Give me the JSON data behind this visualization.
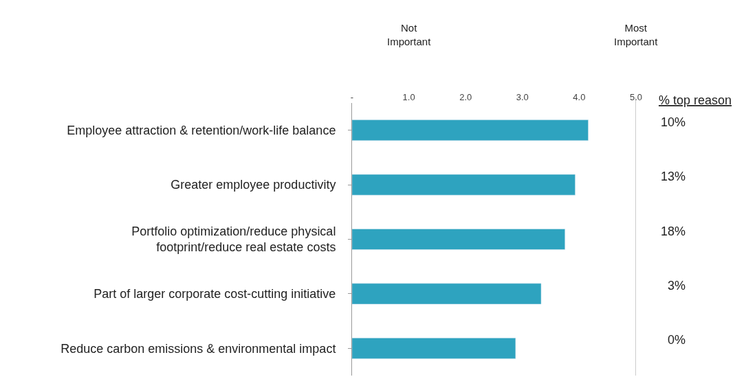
{
  "chart_data": {
    "type": "bar",
    "orientation": "horizontal",
    "categories": [
      "Employee attraction & retention/work-life balance",
      "Greater employee productivity",
      "Portfolio optimization/reduce physical\nfootprint/reduce real estate costs",
      "Part of larger corporate cost-cutting initiative",
      "Reduce carbon emissions & environmental impact"
    ],
    "values": [
      4.16,
      3.93,
      3.75,
      3.33,
      2.88
    ],
    "color": "#2ea3bf",
    "xlim": [
      0,
      5
    ],
    "xticks": [
      {
        "value": 0,
        "label": "-"
      },
      {
        "value": 1,
        "label": "1.0"
      },
      {
        "value": 2,
        "label": "2.0"
      },
      {
        "value": 3,
        "label": "3.0"
      },
      {
        "value": 4,
        "label": "4.0"
      },
      {
        "value": 5,
        "label": "5.0"
      }
    ],
    "annotations": [
      "Not\nImportant",
      "Most\nImportant",
      "% top reason",
      "10%",
      "13%",
      "18%",
      "3%",
      "0%"
    ],
    "legend": false
  }
}
